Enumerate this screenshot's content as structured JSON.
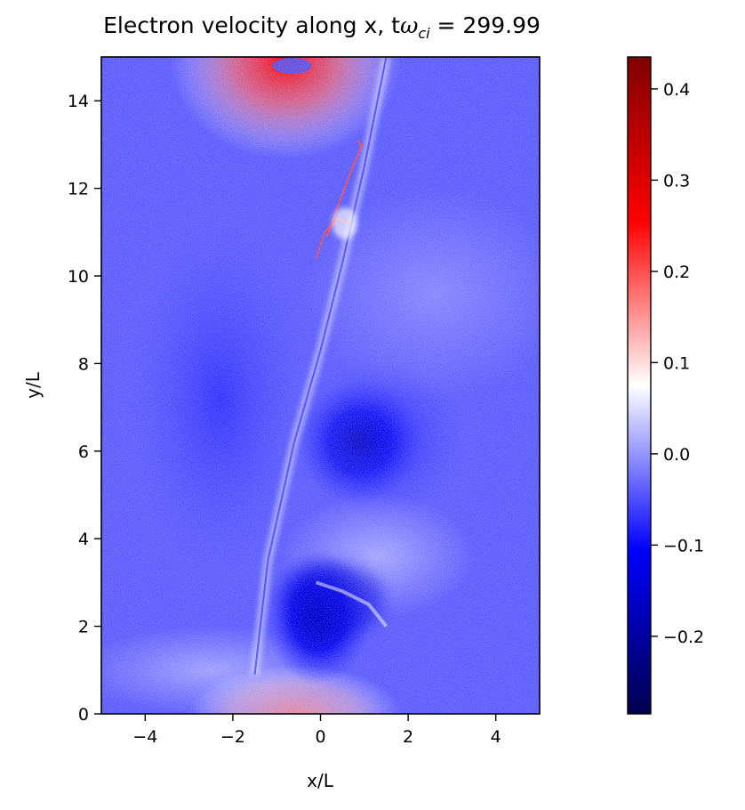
{
  "chart_data": {
    "type": "heatmap",
    "title": {
      "prefix": "Electron velocity along x, t",
      "symbol": "ω",
      "subscript": "ci",
      "suffix": " = 299.99"
    },
    "xlabel": "x/L",
    "ylabel": "y/L",
    "xlim": [
      -5,
      5
    ],
    "ylim": [
      0,
      15
    ],
    "x_ticks": [
      -4,
      -2,
      0,
      2,
      4
    ],
    "x_tick_labels": [
      "−4",
      "−2",
      "0",
      "2",
      "4"
    ],
    "y_ticks": [
      0,
      2,
      4,
      6,
      8,
      10,
      12,
      14
    ],
    "y_tick_labels": [
      "0",
      "2",
      "4",
      "6",
      "8",
      "10",
      "12",
      "14"
    ],
    "colormap": "seismic",
    "colormap_stops": [
      "#00004d",
      "#0000ff",
      "#ffffff",
      "#ff0000",
      "#800000"
    ],
    "colorbar_range": [
      -0.285,
      0.435
    ],
    "colorbar_ticks": [
      -0.2,
      -0.1,
      0.0,
      0.1,
      0.2,
      0.3,
      0.4
    ],
    "colorbar_tick_labels": [
      "−0.2",
      "−0.1",
      "0.0",
      "0.1",
      "0.2",
      "0.3",
      "0.4"
    ],
    "background_value": -0.04,
    "features": [
      {
        "kind": "positive-lobe",
        "x": -0.8,
        "y": 14.6,
        "peak_value": 0.32
      },
      {
        "kind": "positive-lobe",
        "x": -0.6,
        "y": 0.4,
        "peak_value": 0.15
      },
      {
        "kind": "negative-core",
        "x": -0.1,
        "y": 1.9,
        "peak_value": -0.22
      },
      {
        "kind": "negative-region",
        "x": 0.9,
        "y": 6.3,
        "peak_value": -0.13
      },
      {
        "kind": "negative-region",
        "x": -2.4,
        "y": 7.6,
        "peak_value": -0.1
      }
    ]
  }
}
